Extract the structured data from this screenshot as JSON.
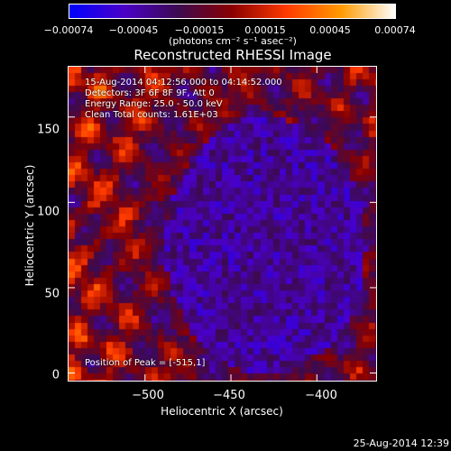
{
  "colorbar": {
    "tick_labels": [
      "−0.00074",
      "−0.00045",
      "−0.00015",
      "0.00015",
      "0.00045",
      "0.00074"
    ],
    "units_label": "(photons cm⁻² s⁻¹ asec⁻²)",
    "min": -0.00074,
    "max": 0.00074,
    "colors": [
      "#0000ff",
      "#4a00c8",
      "#3c0a50",
      "#8a0000",
      "#ff3a00",
      "#ff9a00",
      "#ffffff"
    ]
  },
  "info": {
    "time_range": "15-Aug-2014 04:12:56.000 to 04:14:52.000",
    "detectors": "Detectors: 3F 6F 8F 9F, Att 0",
    "energy_range": "Energy Range: 25.0 - 50.0 keV",
    "clean_counts": "Clean    Total counts: 1.61E+03",
    "peak_position": "Position of Peak = [-515,1]"
  },
  "timestamp": "25-Aug-2014 12:39",
  "chart_data": {
    "type": "heatmap",
    "title": "Reconstructed RHESSI Image",
    "xlabel": "Heliocentric X (arcsec)",
    "ylabel": "Heliocentric Y (arcsec)",
    "xlim": [
      -545,
      -365
    ],
    "ylim": [
      -5,
      180
    ],
    "x_ticks": [
      -500,
      -450,
      -400
    ],
    "x_tick_labels": [
      "−500",
      "−450",
      "−400"
    ],
    "y_ticks": [
      0,
      50,
      100,
      150
    ],
    "y_tick_labels": [
      "0",
      "50",
      "100",
      "150"
    ],
    "peak": [
      -515,
      1
    ],
    "value_range": [
      -0.00074,
      0.00074
    ]
  }
}
